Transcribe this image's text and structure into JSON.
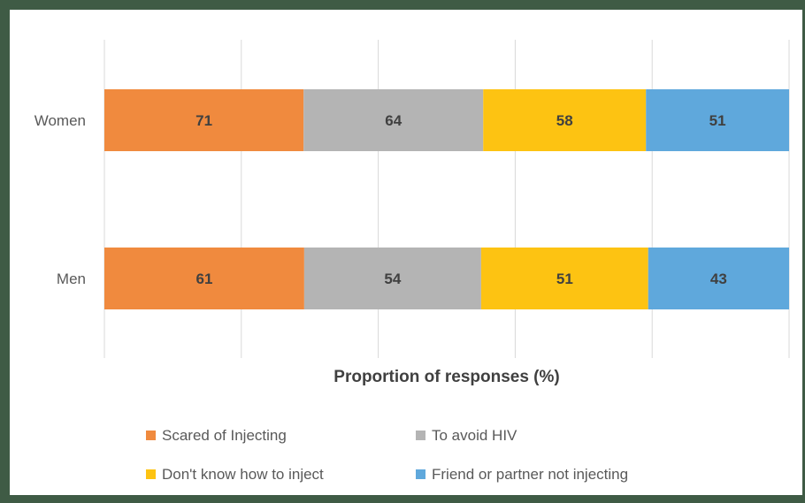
{
  "chart_data": {
    "type": "bar",
    "orientation": "horizontal",
    "stacked": true,
    "normalized": true,
    "categories": [
      "Women",
      "Men"
    ],
    "series": [
      {
        "name": "Scared of Injecting",
        "values": [
          71,
          61
        ],
        "color": "#f08a3e"
      },
      {
        "name": "To avoid HIV",
        "values": [
          64,
          54
        ],
        "color": "#b4b4b4"
      },
      {
        "name": "Don't know how to inject",
        "values": [
          58,
          51
        ],
        "color": "#fdc312"
      },
      {
        "name": "Friend or partner not injecting",
        "values": [
          51,
          43
        ],
        "color": "#5fa8dc"
      }
    ],
    "xlabel": "Proportion of responses (%)",
    "grid": true,
    "legend_position": "bottom"
  }
}
